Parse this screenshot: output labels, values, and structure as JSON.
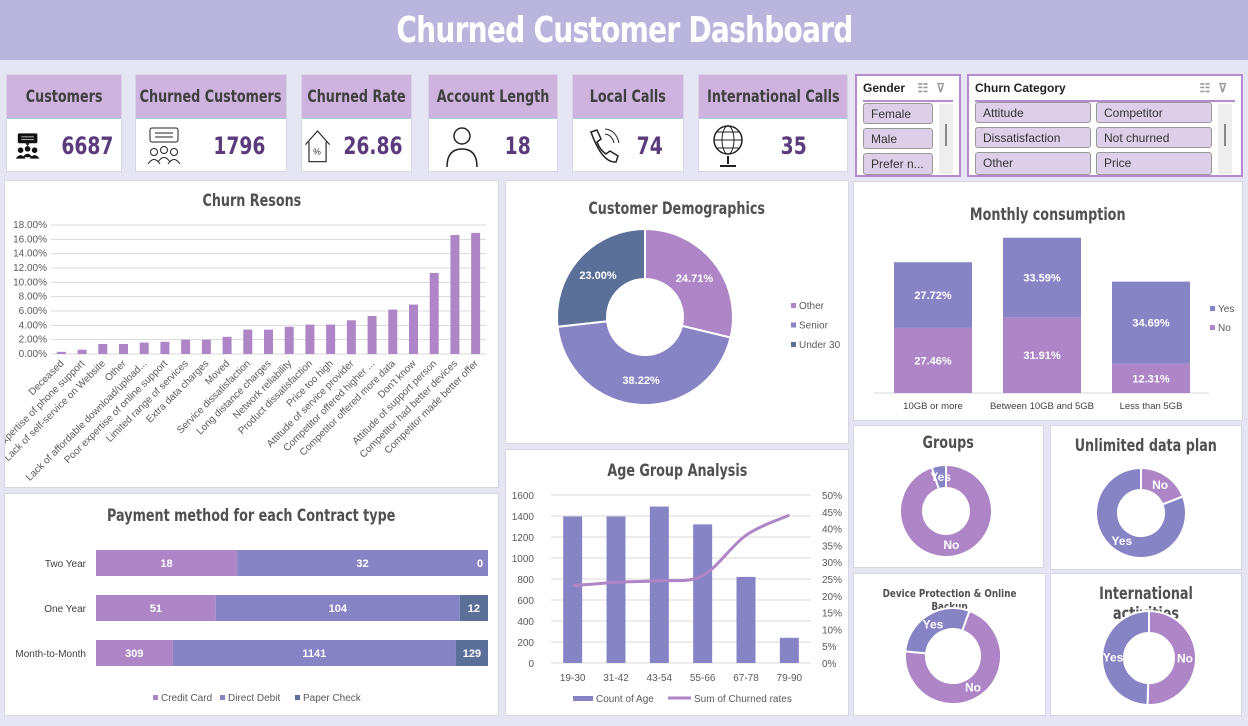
{
  "title": "Churned Customer Dashboard",
  "colors": {
    "violet": "#ae85c6",
    "blue_violet": "#8784c6",
    "slate": "#5b6f98",
    "header": "#b9b5dd",
    "card_header": "#cdb3dd",
    "value": "#5b3b7c"
  },
  "cards": [
    {
      "label": "Customers",
      "value": "6687",
      "icon": "customers-chat-icon"
    },
    {
      "label": "Churned Customers",
      "value": "1796",
      "icon": "churned-customers-icon"
    },
    {
      "label": "Churned Rate",
      "value": "26.86",
      "icon": "house-percent-icon"
    },
    {
      "label": "Account Length",
      "value": "18",
      "icon": "person-icon"
    },
    {
      "label": "Local Calls",
      "value": "74",
      "icon": "phone-icon"
    },
    {
      "label": "International Calls",
      "value": "35",
      "icon": "globe-icon"
    }
  ],
  "slicers": {
    "gender": {
      "title": "Gender",
      "items": [
        "Female",
        "Male",
        "Prefer n..."
      ]
    },
    "churn_category": {
      "title": "Churn Category",
      "items": [
        "Attitude",
        "Competitor",
        "Dissatisfaction",
        "Not churned",
        "Other",
        "Price"
      ]
    }
  },
  "chart_data": [
    {
      "id": "churn_reasons",
      "type": "bar",
      "title": "Churn Resons",
      "ylim": [
        0,
        18
      ],
      "yticks": [
        "0.00%",
        "2.00%",
        "4.00%",
        "6.00%",
        "8.00%",
        "10.00%",
        "12.00%",
        "14.00%",
        "16.00%",
        "18.00%"
      ],
      "grid": true,
      "categories": [
        "Deceased",
        "expertise of phone support",
        "Lack of self-service on Website",
        "Other",
        "Lack of affordable download/upload...",
        "Poor expertise of online support",
        "Limited range of services",
        "Extra data charges",
        "Moved",
        "Service dissatisfaction",
        "Long distance charges",
        "Network reliability",
        "Product dissatisfaction",
        "Price too high",
        "Attitude of service provider",
        "Competitor offered higher ...",
        "Competitor offered more data",
        "Don't know",
        "Attitude of support person",
        "Competitor had better devices",
        "Competitor made better offer"
      ],
      "values": [
        0.3,
        0.6,
        1.4,
        1.4,
        1.6,
        1.7,
        2.0,
        2.0,
        2.4,
        3.4,
        3.4,
        3.8,
        4.1,
        4.1,
        4.7,
        5.3,
        6.2,
        6.9,
        11.3,
        16.6,
        16.9
      ]
    },
    {
      "id": "demographics",
      "type": "pie",
      "title": "Customer Demographics",
      "legend": "right",
      "categories": [
        "Other",
        "Senior",
        "Under 30"
      ],
      "values": [
        24.71,
        38.22,
        23.0
      ],
      "labels": [
        "24.71%",
        "38.22%",
        "23.00%"
      ]
    },
    {
      "id": "monthly",
      "type": "bar",
      "stacked": true,
      "title": "Monthly consumption",
      "legend": "right",
      "categories": [
        "10GB or more",
        "Between 10GB and 5GB",
        "Less than 5GB"
      ],
      "series": [
        {
          "name": "No",
          "values": [
            27.46,
            31.91,
            12.31
          ],
          "labels": [
            "27.46%",
            "31.91%",
            "12.31%"
          ]
        },
        {
          "name": "Yes",
          "values": [
            27.72,
            33.59,
            34.69
          ],
          "labels": [
            "27.72%",
            "33.59%",
            "34.69%"
          ]
        }
      ],
      "legend_items": [
        "Yes",
        "No"
      ]
    },
    {
      "id": "payment",
      "type": "bar",
      "orientation": "horizontal",
      "stacked": "100%",
      "title": "Payment method for each Contract type",
      "legend": "bottom",
      "categories": [
        "Two Year",
        "One Year",
        "Month-to-Month"
      ],
      "series": [
        {
          "name": "Credit Card",
          "values": [
            18,
            51,
            309
          ]
        },
        {
          "name": "Direct Debit",
          "values": [
            32,
            104,
            1141
          ]
        },
        {
          "name": "Paper Check",
          "values": [
            0,
            12,
            129
          ]
        }
      ]
    },
    {
      "id": "age",
      "type": "bar",
      "title": "Age Group Analysis",
      "legend": "bottom",
      "grid": true,
      "categories": [
        "19-30",
        "31-42",
        "43-54",
        "55-66",
        "67-78",
        "79-90"
      ],
      "ylim": [
        0,
        1600
      ],
      "yticks": [
        "0",
        "200",
        "400",
        "600",
        "800",
        "1000",
        "1200",
        "1400",
        "1600"
      ],
      "y2lim": [
        0,
        50
      ],
      "y2ticks": [
        "0%",
        "5%",
        "10%",
        "15%",
        "20%",
        "25%",
        "30%",
        "35%",
        "40%",
        "45%",
        "50%"
      ],
      "series": [
        {
          "name": "Count of Age",
          "type": "bar",
          "values": [
            1395,
            1395,
            1490,
            1320,
            820,
            240
          ]
        },
        {
          "name": "Sum of Churned rates",
          "type": "line",
          "axis": "right",
          "values": [
            23,
            24,
            24.5,
            26,
            38,
            44
          ]
        }
      ]
    },
    {
      "id": "groups",
      "type": "pie",
      "title": "Groups",
      "categories": [
        "No",
        "Yes"
      ],
      "values": [
        95,
        5
      ]
    },
    {
      "id": "unlimited",
      "type": "pie",
      "title": "Unlimited data plan",
      "categories": [
        "No",
        "Yes"
      ],
      "values": [
        19,
        81
      ]
    },
    {
      "id": "device",
      "type": "pie",
      "title": "Device Protection & Online Backup",
      "categories": [
        "No",
        "Yes"
      ],
      "values": [
        71,
        29
      ]
    },
    {
      "id": "international",
      "type": "pie",
      "title": "International activities",
      "categories": [
        "No",
        "Yes"
      ],
      "values": [
        50.5,
        49.5
      ]
    }
  ]
}
